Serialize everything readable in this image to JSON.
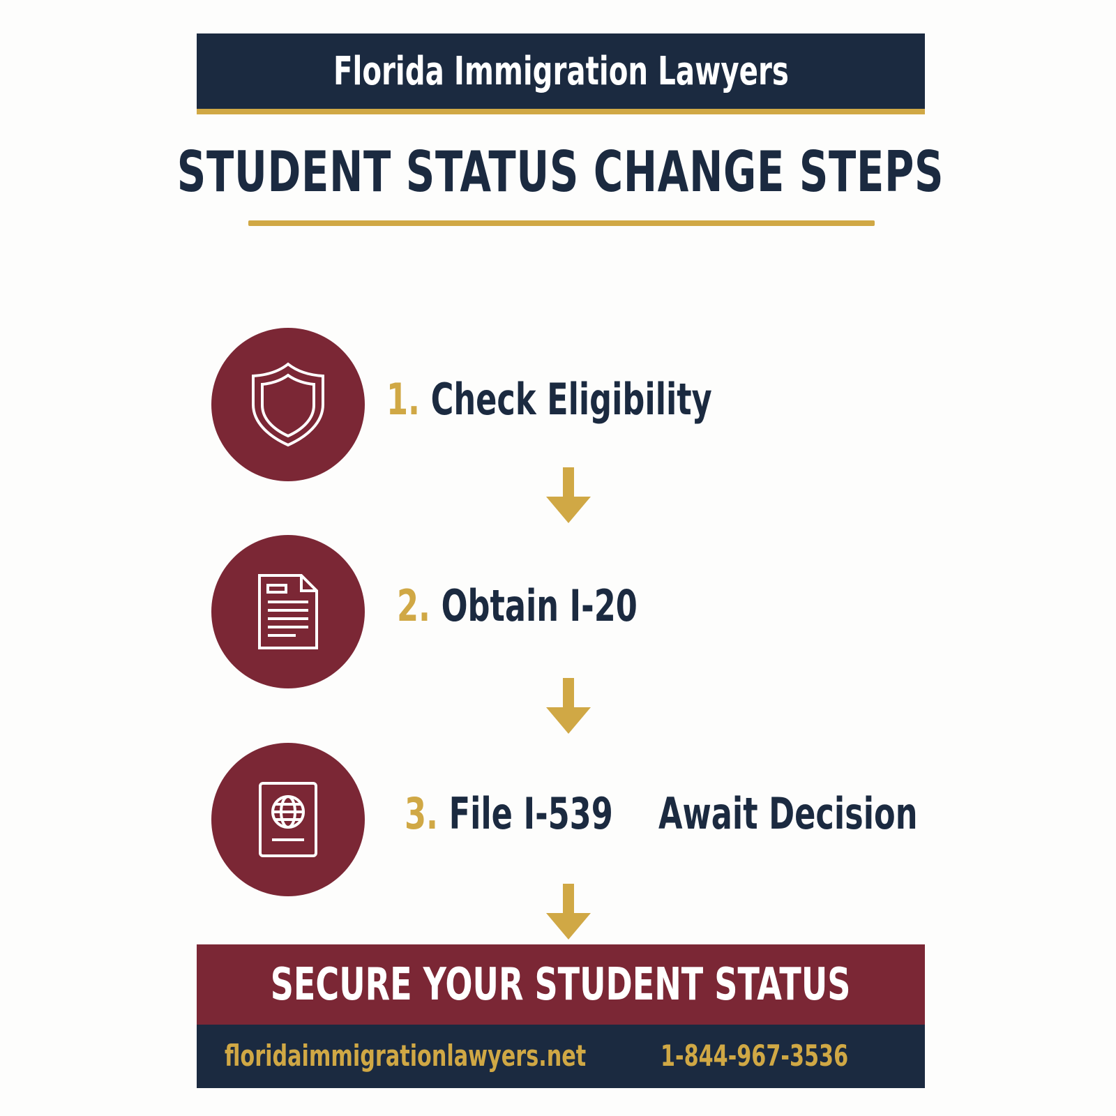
{
  "header": {
    "title": "Florida Immigration Lawyers"
  },
  "main_title": "STUDENT STATUS CHANGE STEPS",
  "steps": [
    {
      "number": "1.",
      "label": "Check Eligibility",
      "icon": "shield-icon"
    },
    {
      "number": "2.",
      "label": "Obtain I-20",
      "icon": "document-icon"
    },
    {
      "number": "3.",
      "label": "File I-539",
      "icon": "passport-icon"
    }
  ],
  "final_step": "Await Decision",
  "cta": "SECURE YOUR STUDENT STATUS",
  "footer": {
    "website": "floridaimmigrationlawyers.net",
    "phone": "1-844-967-3536"
  },
  "colors": {
    "navy": "#1b2a40",
    "gold": "#d0a845",
    "maroon": "#7b2735"
  }
}
